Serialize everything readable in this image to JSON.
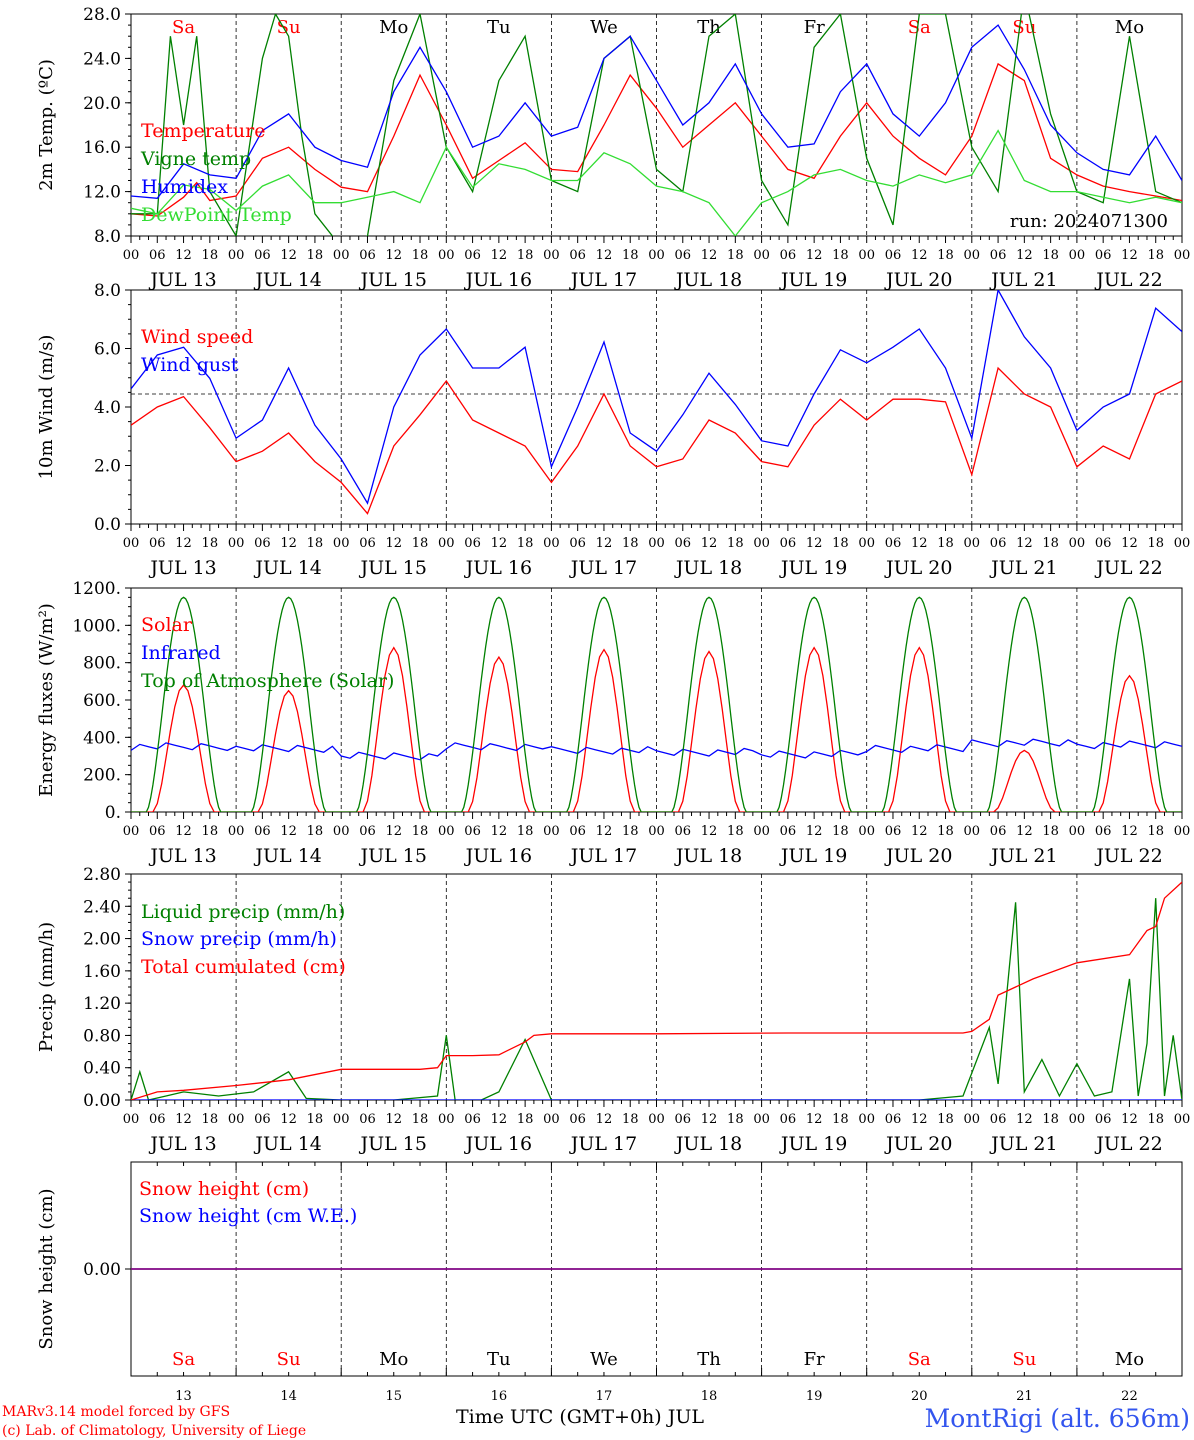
{
  "run_label": "run: 2024071300",
  "footer": {
    "model": "MARv3.14 model forced by GFS",
    "copyright": "(c) Lab. of Climatology, University of Liege",
    "axis_title": "Time UTC (GMT+0h) JUL",
    "station": "MontRigi (alt. 656m)"
  },
  "days": [
    {
      "abbr": "Sa",
      "date": "JUL 13",
      "num": "13",
      "weekend": true
    },
    {
      "abbr": "Su",
      "date": "JUL 14",
      "num": "14",
      "weekend": true
    },
    {
      "abbr": "Mo",
      "date": "JUL 15",
      "num": "15",
      "weekend": false
    },
    {
      "abbr": "Tu",
      "date": "JUL 16",
      "num": "16",
      "weekend": false
    },
    {
      "abbr": "We",
      "date": "JUL 17",
      "num": "17",
      "weekend": false
    },
    {
      "abbr": "Th",
      "date": "JUL 18",
      "num": "18",
      "weekend": false
    },
    {
      "abbr": "Fr",
      "date": "JUL 19",
      "num": "19",
      "weekend": false
    },
    {
      "abbr": "Sa",
      "date": "JUL 20",
      "num": "20",
      "weekend": true
    },
    {
      "abbr": "Su",
      "date": "JUL 21",
      "num": "21",
      "weekend": true
    },
    {
      "abbr": "Mo",
      "date": "JUL 22",
      "num": "22",
      "weekend": false
    }
  ],
  "hour_ticks": [
    "00",
    "06",
    "12",
    "18"
  ],
  "colors": {
    "red": "#ff0000",
    "green": "#008000",
    "blue": "#0000ff",
    "lightgreen": "#33dd33",
    "purple": "#800080"
  },
  "chart_data": [
    {
      "id": "temp",
      "type": "line",
      "ylabel": "2m Temp. (ºC)",
      "ylim": [
        8,
        28
      ],
      "yticks": [
        "8.0",
        "12.0",
        "16.0",
        "20.0",
        "24.0",
        "28.0"
      ],
      "x_unit": "hours since JUL 13 00 UTC",
      "series": [
        {
          "name": "Temperature",
          "color": "red",
          "x": [
            0,
            6,
            12,
            15,
            18,
            24,
            30,
            36,
            42,
            48,
            54,
            60,
            66,
            72,
            78,
            84,
            90,
            96,
            102,
            108,
            114,
            120,
            126,
            132,
            138,
            144,
            150,
            156,
            162,
            168,
            174,
            180,
            186,
            192,
            198,
            204,
            210,
            216,
            222,
            228,
            234,
            240
          ],
          "y": [
            10,
            9.8,
            11.5,
            12.8,
            11.2,
            11.6,
            15,
            16,
            14,
            12.4,
            12,
            17,
            22.5,
            18,
            13.2,
            14.8,
            16.4,
            14,
            13.8,
            18,
            22.5,
            19.5,
            16,
            18,
            20,
            17,
            14,
            13.2,
            17,
            20,
            17,
            15,
            13.5,
            17,
            23.5,
            22,
            15,
            13.5,
            12.5,
            12,
            11.6,
            11.2
          ]
        },
        {
          "name": "Vigne temp",
          "color": "green",
          "x": [
            0,
            6,
            9,
            12,
            15,
            18,
            24,
            30,
            33,
            36,
            39,
            42,
            48,
            54,
            60,
            66,
            72,
            78,
            84,
            90,
            96,
            102,
            108,
            114,
            120,
            126,
            132,
            138,
            144,
            150,
            156,
            162,
            168,
            174,
            180,
            186,
            192,
            198,
            204,
            210,
            216,
            222,
            228,
            234,
            240
          ],
          "y": [
            10,
            10,
            26,
            18,
            26,
            12,
            8,
            24,
            28,
            26,
            17,
            10,
            7,
            8,
            22,
            28,
            16,
            12,
            22,
            26,
            13,
            12,
            24,
            26,
            14,
            12,
            26,
            28,
            13,
            9,
            25,
            28,
            15,
            9,
            28,
            28,
            16,
            12,
            30,
            19,
            12,
            11,
            26,
            12,
            11
          ]
        },
        {
          "name": "Humidex",
          "color": "blue",
          "x": [
            0,
            6,
            12,
            18,
            24,
            30,
            36,
            42,
            48,
            54,
            60,
            66,
            72,
            78,
            84,
            90,
            96,
            102,
            108,
            114,
            120,
            126,
            132,
            138,
            144,
            150,
            156,
            162,
            168,
            174,
            180,
            186,
            192,
            198,
            204,
            210,
            216,
            222,
            228,
            234,
            240
          ],
          "y": [
            11.6,
            11.4,
            14.5,
            13.5,
            13.2,
            17.5,
            19,
            16,
            14.8,
            14.2,
            21,
            25,
            21,
            16,
            17,
            20,
            17,
            17.8,
            24,
            26,
            22,
            18,
            20,
            23.5,
            19,
            16,
            16.3,
            21,
            23.5,
            19,
            17,
            20,
            25,
            27,
            23,
            18,
            15.5,
            14,
            13.5,
            17,
            13
          ]
        },
        {
          "name": "DewPoint Temp",
          "color": "lightgreen",
          "x": [
            0,
            6,
            12,
            18,
            24,
            30,
            36,
            42,
            48,
            54,
            60,
            66,
            72,
            78,
            84,
            90,
            96,
            102,
            108,
            114,
            120,
            126,
            132,
            138,
            144,
            150,
            156,
            162,
            168,
            174,
            180,
            186,
            192,
            198,
            204,
            210,
            216,
            222,
            228,
            234,
            240
          ],
          "y": [
            10.5,
            10,
            12.6,
            12.2,
            10.3,
            12.5,
            13.5,
            11,
            11,
            11.5,
            12,
            11,
            16,
            12.4,
            14.5,
            14,
            13,
            13,
            15.5,
            14.5,
            12.5,
            12,
            11,
            8,
            11,
            12,
            13.5,
            14,
            13,
            12.5,
            13.5,
            12.8,
            13.5,
            17.5,
            13,
            12,
            12,
            11.5,
            11,
            11.5,
            11
          ]
        }
      ]
    },
    {
      "id": "wind",
      "type": "line",
      "ylabel": "10m Wind (m/s)",
      "ylim": [
        0,
        9
      ],
      "yticks": [
        "0.0",
        "2.0",
        "4.0",
        "6.0",
        "8.0"
      ],
      "reference_line": 5,
      "series": [
        {
          "name": "Wind speed",
          "color": "red",
          "x": [
            0,
            6,
            12,
            18,
            24,
            30,
            36,
            42,
            48,
            54,
            60,
            66,
            72,
            78,
            84,
            90,
            96,
            102,
            108,
            114,
            120,
            126,
            132,
            138,
            144,
            150,
            156,
            162,
            168,
            174,
            180,
            186,
            192,
            198,
            204,
            210,
            216,
            222,
            228,
            234,
            240
          ],
          "y": [
            3.8,
            4.5,
            4.9,
            3.7,
            2.4,
            2.8,
            3.5,
            2.4,
            1.6,
            0.4,
            3,
            4.2,
            5.5,
            4,
            3.5,
            3,
            1.6,
            3,
            5,
            3,
            2.2,
            2.5,
            4,
            3.5,
            2.4,
            2.2,
            3.8,
            4.8,
            4,
            4.8,
            4.8,
            4.7,
            1.9,
            6,
            5,
            4.5,
            2.2,
            3,
            2.5,
            5,
            5.5
          ]
        },
        {
          "name": "Wind gust",
          "color": "blue",
          "x": [
            0,
            6,
            12,
            18,
            24,
            30,
            36,
            42,
            48,
            54,
            60,
            66,
            72,
            78,
            84,
            90,
            96,
            102,
            108,
            114,
            120,
            126,
            132,
            138,
            144,
            150,
            156,
            162,
            168,
            174,
            180,
            186,
            192,
            198,
            204,
            210,
            216,
            222,
            228,
            234,
            240
          ],
          "y": [
            5.2,
            6.5,
            6.8,
            5.6,
            3.3,
            4,
            6,
            3.8,
            2.5,
            0.8,
            4.5,
            6.5,
            7.5,
            6,
            6,
            6.8,
            2.2,
            4.5,
            7,
            3.5,
            2.8,
            4.2,
            5.8,
            4.6,
            3.2,
            3,
            5,
            6.7,
            6.2,
            6.8,
            7.5,
            6,
            3.3,
            9,
            7.2,
            6,
            3.6,
            4.5,
            5,
            8.3,
            7.4
          ]
        }
      ]
    },
    {
      "id": "energy",
      "type": "line",
      "ylabel": "Energy fluxes (W/m²)",
      "ylim": [
        0,
        1200
      ],
      "yticks": [
        "0.",
        "200.",
        "400.",
        "600.",
        "800.",
        "1000.",
        "1200."
      ],
      "series": [
        {
          "name": "Solar",
          "color": "red",
          "peaks": [
            680,
            650,
            880,
            830,
            870,
            860,
            880,
            880,
            330,
            730
          ]
        },
        {
          "name": "Infrared",
          "color": "blue",
          "baseline": [
            350,
            340,
            300,
            350,
            330,
            320,
            310,
            340,
            370,
            360
          ]
        },
        {
          "name": "Top of Atmosphere (Solar)",
          "color": "green",
          "daily_peak": 1150
        }
      ]
    },
    {
      "id": "precip",
      "type": "line",
      "ylabel": "Precip (mm/h)",
      "ylim": [
        0,
        2.8
      ],
      "yticks": [
        "0.00",
        "0.40",
        "0.80",
        "1.20",
        "1.60",
        "2.00",
        "2.40",
        "2.80"
      ],
      "series": [
        {
          "name": "Liquid precip (mm/h)",
          "color": "green",
          "x": [
            0,
            2,
            4,
            8,
            12,
            20,
            28,
            36,
            40,
            48,
            60,
            70,
            72,
            74,
            80,
            84,
            90,
            96,
            120,
            180,
            190,
            196,
            198,
            202,
            204,
            208,
            212,
            216,
            220,
            224,
            228,
            230,
            232,
            234,
            236,
            238,
            240
          ],
          "y": [
            0,
            0.35,
            0,
            0.05,
            0.1,
            0.05,
            0.1,
            0.35,
            0.02,
            0,
            0,
            0.05,
            0.8,
            0,
            0,
            0.1,
            0.75,
            0,
            0,
            0,
            0.05,
            0.9,
            0.2,
            2.45,
            0.1,
            0.5,
            0.05,
            0.45,
            0.05,
            0.1,
            1.5,
            0.05,
            0.7,
            2.5,
            0.05,
            0.8,
            0
          ]
        },
        {
          "name": "Snow precip (mm/h)",
          "color": "blue",
          "x": [
            0,
            240
          ],
          "y": [
            0,
            0
          ]
        },
        {
          "name": "Total cumulated (cm)",
          "color": "red",
          "x": [
            0,
            6,
            12,
            24,
            36,
            48,
            54,
            66,
            70,
            72,
            78,
            84,
            90,
            92,
            96,
            120,
            150,
            180,
            190,
            192,
            196,
            198,
            202,
            206,
            216,
            228,
            232,
            234,
            236,
            240
          ],
          "y": [
            0,
            0.1,
            0.12,
            0.18,
            0.25,
            0.38,
            0.38,
            0.38,
            0.4,
            0.55,
            0.55,
            0.56,
            0.72,
            0.8,
            0.82,
            0.82,
            0.83,
            0.83,
            0.83,
            0.85,
            1.0,
            1.3,
            1.4,
            1.5,
            1.7,
            1.8,
            2.1,
            2.15,
            2.5,
            2.7
          ]
        }
      ]
    },
    {
      "id": "snow",
      "type": "line",
      "ylabel": "Snow height (cm)",
      "ylim": [
        -1,
        1
      ],
      "yticks": [
        "0.00"
      ],
      "series": [
        {
          "name": "Snow height (cm)",
          "color": "red",
          "x": [
            0,
            240
          ],
          "y": [
            0,
            0
          ]
        },
        {
          "name": "Snow height (cm W.E.)",
          "color": "blue",
          "x": [
            0,
            240
          ],
          "y": [
            0,
            0
          ]
        }
      ]
    }
  ]
}
